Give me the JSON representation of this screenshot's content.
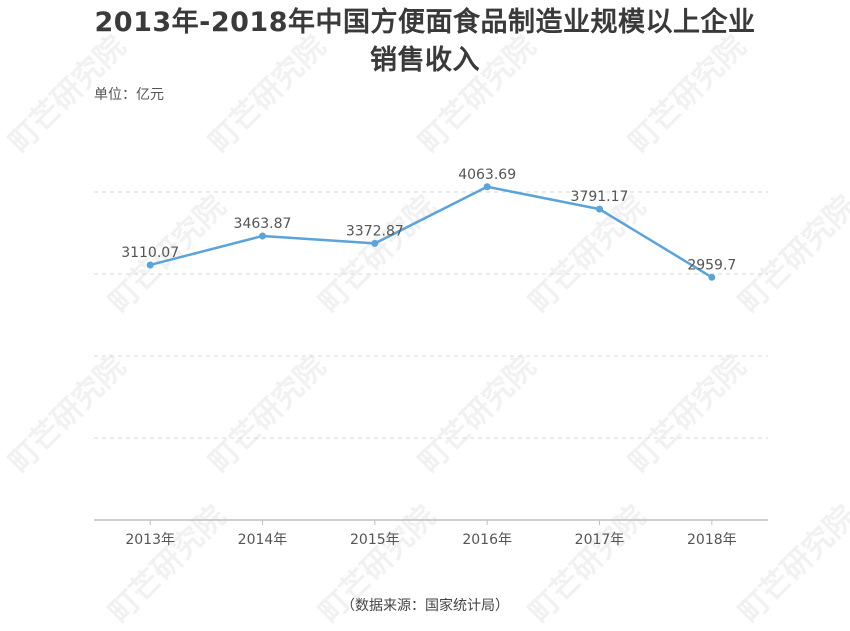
{
  "title_line1": "2013年-2018年中国方便面食品制造业规模以上企业",
  "title_line2": "销售收入",
  "unit": "单位：亿元",
  "source": "（数据来源：国家统计局）",
  "watermark": "町芒研究院",
  "colors": {
    "line": "#5ba3d9",
    "grid": "#d9d9d9",
    "axis": "#bfbfbf",
    "text": "#555555"
  },
  "chart_data": {
    "type": "line",
    "categories": [
      "2013年",
      "2014年",
      "2015年",
      "2016年",
      "2017年",
      "2018年"
    ],
    "series": [
      {
        "values": [
          3110.07,
          3463.87,
          3372.87,
          4063.69,
          3791.17,
          2959.7
        ]
      }
    ],
    "data_labels": [
      "3110.07",
      "3463.87",
      "3372.87",
      "4063.69",
      "3791.17",
      "2959.7"
    ],
    "ylim": [
      0,
      5000
    ],
    "grid": true,
    "legend": "none"
  }
}
